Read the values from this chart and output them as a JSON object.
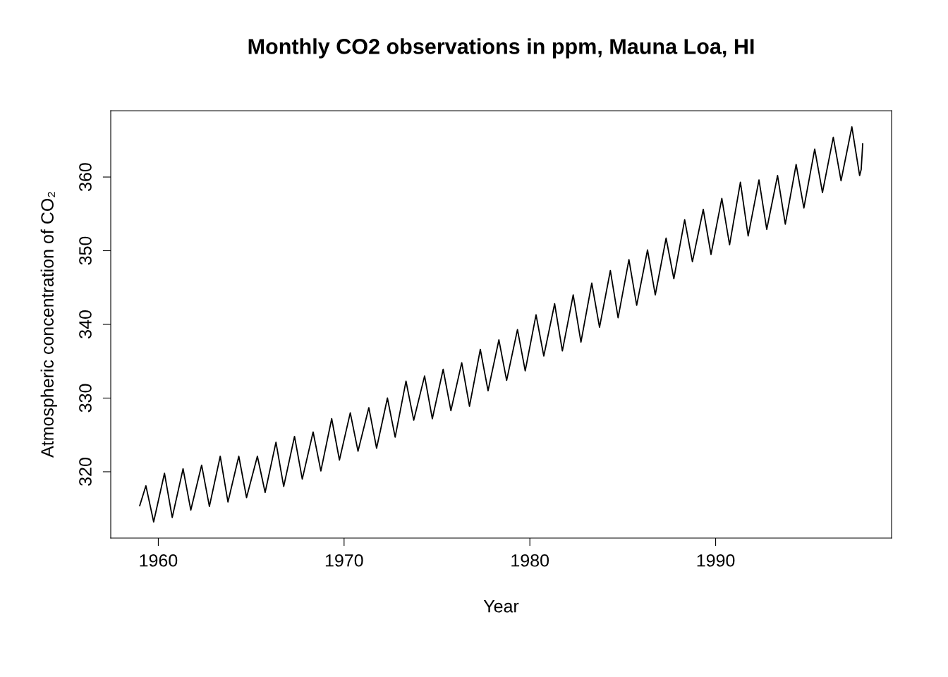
{
  "chart_data": {
    "type": "line",
    "title": "Monthly CO2 observations in ppm, Mauna Loa, HI",
    "xlabel": "Year",
    "ylabel": "Atmospheric concentration of CO₂",
    "x": [
      1959.0,
      1959.333,
      1959.75,
      1960.333,
      1960.75,
      1961.333,
      1961.75,
      1962.333,
      1962.75,
      1963.333,
      1963.75,
      1964.333,
      1964.75,
      1965.333,
      1965.75,
      1966.333,
      1966.75,
      1967.333,
      1967.75,
      1968.333,
      1968.75,
      1969.333,
      1969.75,
      1970.333,
      1970.75,
      1971.333,
      1971.75,
      1972.333,
      1972.75,
      1973.333,
      1973.75,
      1974.333,
      1974.75,
      1975.333,
      1975.75,
      1976.333,
      1976.75,
      1977.333,
      1977.75,
      1978.333,
      1978.75,
      1979.333,
      1979.75,
      1980.333,
      1980.75,
      1981.333,
      1981.75,
      1982.333,
      1982.75,
      1983.333,
      1983.75,
      1984.333,
      1984.75,
      1985.333,
      1985.75,
      1986.333,
      1986.75,
      1987.333,
      1987.75,
      1988.333,
      1988.75,
      1989.333,
      1989.75,
      1990.333,
      1990.75,
      1991.333,
      1991.75,
      1992.333,
      1992.75,
      1993.333,
      1993.75,
      1994.333,
      1994.75,
      1995.333,
      1995.75,
      1996.333,
      1996.75,
      1997.333,
      1997.75,
      1997.833,
      1997.917
    ],
    "values": [
      315.4,
      318.1,
      313.2,
      319.8,
      313.8,
      320.4,
      314.8,
      320.9,
      315.3,
      322.1,
      315.9,
      322.1,
      316.5,
      322.1,
      317.2,
      324.0,
      318.0,
      324.8,
      319.0,
      325.4,
      320.1,
      327.2,
      321.6,
      328.0,
      322.8,
      328.7,
      323.2,
      330.0,
      324.7,
      332.3,
      327.0,
      333.0,
      327.2,
      333.9,
      328.3,
      334.8,
      328.9,
      336.6,
      331.0,
      337.9,
      332.4,
      339.3,
      333.7,
      341.3,
      335.7,
      342.8,
      336.4,
      344.0,
      337.6,
      345.6,
      339.6,
      347.3,
      340.9,
      348.8,
      342.6,
      350.1,
      344.0,
      351.7,
      346.2,
      354.2,
      348.5,
      355.6,
      349.5,
      357.1,
      350.8,
      359.3,
      352.0,
      359.6,
      352.9,
      360.2,
      353.6,
      361.7,
      355.8,
      363.8,
      357.9,
      365.4,
      359.5,
      366.8,
      360.2,
      361.0,
      364.5
    ],
    "color": "#000000",
    "xlim": [
      1957.44,
      1999.47
    ],
    "xticks": [
      1960,
      1970,
      1980,
      1990
    ],
    "ylim": [
      311.0,
      369.0
    ],
    "yticks": [
      320,
      330,
      340,
      350,
      360
    ],
    "grid": false,
    "legend": false
  }
}
